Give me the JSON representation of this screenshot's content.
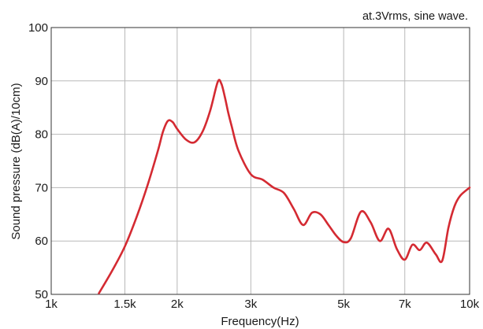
{
  "chart_data": {
    "type": "line",
    "annotation": "at.3Vrms, sine wave.",
    "xlabel": "Frequency(Hz)",
    "ylabel": "Sound pressure (dB(A)/10cm)",
    "xscale": "log",
    "xlim": [
      1000,
      10000
    ],
    "ylim": [
      50,
      100
    ],
    "grid": true,
    "x_ticks": [
      {
        "value": 1000,
        "label": "1k"
      },
      {
        "value": 1500,
        "label": "1.5k"
      },
      {
        "value": 2000,
        "label": "2k"
      },
      {
        "value": 3000,
        "label": "3k"
      },
      {
        "value": 5000,
        "label": "5k"
      },
      {
        "value": 7000,
        "label": "7k"
      },
      {
        "value": 10000,
        "label": "10k"
      }
    ],
    "y_ticks": [
      {
        "value": 50,
        "label": "50"
      },
      {
        "value": 60,
        "label": "60"
      },
      {
        "value": 70,
        "label": "70"
      },
      {
        "value": 80,
        "label": "80"
      },
      {
        "value": 90,
        "label": "90"
      },
      {
        "value": 100,
        "label": "100"
      }
    ],
    "series": [
      {
        "color": "#d42a32",
        "x": [
          1300,
          1400,
          1500,
          1600,
          1700,
          1800,
          1850,
          1900,
          1950,
          2000,
          2100,
          2200,
          2300,
          2400,
          2500,
          2550,
          2600,
          2650,
          2700,
          2800,
          3000,
          3200,
          3400,
          3600,
          3800,
          4000,
          4200,
          4400,
          4600,
          4800,
          5000,
          5200,
          5500,
          5800,
          6100,
          6400,
          6700,
          7000,
          7300,
          7600,
          7900,
          8300,
          8600,
          8900,
          9200,
          9500,
          10000
        ],
        "y": [
          50.2,
          54.5,
          59.0,
          64.5,
          70.5,
          77.0,
          80.5,
          82.5,
          82.3,
          81.0,
          79.0,
          78.5,
          80.5,
          84.5,
          89.8,
          89.5,
          87.0,
          84.0,
          81.5,
          77.0,
          72.5,
          71.5,
          70.0,
          69.0,
          66.0,
          63.0,
          65.3,
          65.0,
          63.0,
          61.0,
          59.8,
          60.5,
          65.5,
          63.5,
          60.0,
          62.3,
          58.5,
          56.5,
          59.3,
          58.3,
          59.7,
          57.5,
          56.3,
          62.5,
          66.5,
          68.5,
          70.0
        ]
      }
    ]
  }
}
